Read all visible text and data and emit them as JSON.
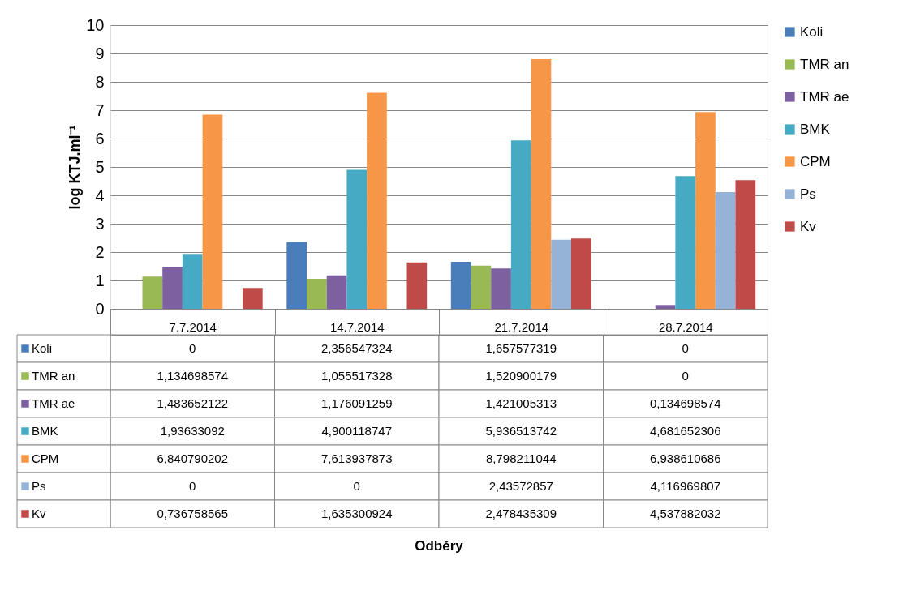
{
  "chart_data": {
    "type": "bar",
    "annotations": [
      "Odběry"
    ],
    "ylabel": "log KTJ.ml⁻¹",
    "categories": [
      "7.7.2014",
      "14.7.2014",
      "21.7.2014",
      "28.7.2014"
    ],
    "ylim": [
      0,
      10
    ],
    "yticks": [
      0,
      1,
      2,
      3,
      4,
      5,
      6,
      7,
      8,
      9,
      10
    ],
    "grid": "y",
    "legend": "right",
    "series": [
      {
        "name": "Koli",
        "color": "#4a7ebb",
        "values": [
          0,
          2.356547324,
          1.657577319,
          0
        ],
        "value_labels": [
          "0",
          "2,356547324",
          "1,657577319",
          "0"
        ]
      },
      {
        "name": "TMR an",
        "color": "#98b954",
        "values": [
          1.134698574,
          1.055517328,
          1.520900179,
          0
        ],
        "value_labels": [
          "1,134698574",
          "1,055517328",
          "1,520900179",
          "0"
        ]
      },
      {
        "name": "TMR ae",
        "color": "#7d60a0",
        "values": [
          1.483652122,
          1.176091259,
          1.421005313,
          0.134698574
        ],
        "value_labels": [
          "1,483652122",
          "1,176091259",
          "1,421005313",
          "0,134698574"
        ]
      },
      {
        "name": "BMK",
        "color": "#46aac5",
        "values": [
          1.93633092,
          4.900118747,
          5.936513742,
          4.681652306
        ],
        "value_labels": [
          "1,93633092",
          "4,900118747",
          "5,936513742",
          "4,681652306"
        ]
      },
      {
        "name": "CPM",
        "color": "#f79646",
        "values": [
          6.840790202,
          7.613937873,
          8.798211044,
          6.938610686
        ],
        "value_labels": [
          "6,840790202",
          "7,613937873",
          "8,798211044",
          "6,938610686"
        ]
      },
      {
        "name": "Ps",
        "color": "#95b3d7",
        "values": [
          0,
          0,
          2.43572857,
          4.116969807
        ],
        "value_labels": [
          "0",
          "0",
          "2,43572857",
          "4,116969807"
        ]
      },
      {
        "name": "Kv",
        "color": "#be4b48",
        "values": [
          0.736758565,
          1.635300924,
          2.478435309,
          4.537882032
        ],
        "value_labels": [
          "0,736758565",
          "1,635300924",
          "2,478435309",
          "4,537882032"
        ]
      }
    ]
  }
}
